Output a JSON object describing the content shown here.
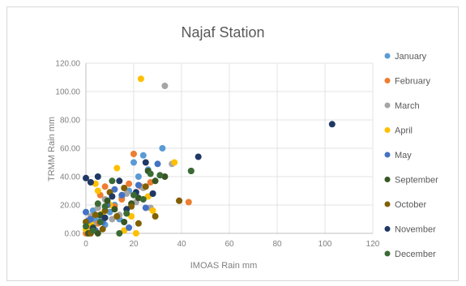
{
  "chart_data": {
    "type": "scatter",
    "title": "Najaf Station",
    "xlabel": "IMOAS Rain mm",
    "ylabel": "TRMM Rain mm",
    "xlim": [
      0,
      120
    ],
    "ylim": [
      0,
      120
    ],
    "x_ticks": [
      "0",
      "20",
      "40",
      "60",
      "80",
      "100",
      "120"
    ],
    "y_ticks": [
      "0.00",
      "20.00",
      "40.00",
      "60.00",
      "80.00",
      "100.00",
      "120.00"
    ],
    "grid": true,
    "legend_position": "right",
    "series": [
      {
        "name": "January",
        "color": "#5b9bd5",
        "points": [
          [
            1,
            2
          ],
          [
            2,
            5
          ],
          [
            4,
            9
          ],
          [
            6,
            12
          ],
          [
            8,
            6
          ],
          [
            10,
            15
          ],
          [
            12,
            20
          ],
          [
            15,
            25
          ],
          [
            18,
            30
          ],
          [
            20,
            50
          ],
          [
            22,
            40
          ],
          [
            24,
            55
          ],
          [
            26,
            45
          ],
          [
            32,
            60
          ],
          [
            3,
            16
          ],
          [
            14,
            10
          ]
        ]
      },
      {
        "name": "February",
        "color": "#ed7d31",
        "points": [
          [
            0,
            0
          ],
          [
            2,
            3
          ],
          [
            5,
            7
          ],
          [
            8,
            33
          ],
          [
            12,
            19
          ],
          [
            15,
            24
          ],
          [
            18,
            35
          ],
          [
            20,
            56
          ],
          [
            23,
            33
          ],
          [
            27,
            36
          ],
          [
            39,
            23
          ],
          [
            43,
            22
          ],
          [
            6,
            27
          ]
        ]
      },
      {
        "name": "March",
        "color": "#a5a5a5",
        "points": [
          [
            1,
            1
          ],
          [
            3,
            6
          ],
          [
            5,
            18
          ],
          [
            8,
            24
          ],
          [
            11,
            10
          ],
          [
            14,
            13
          ],
          [
            17,
            28
          ],
          [
            21,
            22
          ],
          [
            24,
            32
          ],
          [
            27,
            18
          ],
          [
            33,
            104
          ],
          [
            36,
            49
          ],
          [
            2,
            12
          ]
        ]
      },
      {
        "name": "April",
        "color": "#ffc000",
        "points": [
          [
            0,
            3
          ],
          [
            2,
            7
          ],
          [
            5,
            30
          ],
          [
            7,
            14
          ],
          [
            10,
            20
          ],
          [
            13,
            46
          ],
          [
            16,
            2
          ],
          [
            19,
            12
          ],
          [
            21,
            0
          ],
          [
            23,
            109
          ],
          [
            26,
            26
          ],
          [
            28,
            16
          ],
          [
            37,
            50
          ],
          [
            4,
            35
          ]
        ]
      },
      {
        "name": "May",
        "color": "#4472c4",
        "points": [
          [
            0,
            15
          ],
          [
            2,
            10
          ],
          [
            4,
            2
          ],
          [
            7,
            8
          ],
          [
            9,
            20
          ],
          [
            12,
            31
          ],
          [
            15,
            27
          ],
          [
            18,
            4
          ],
          [
            22,
            34
          ],
          [
            25,
            18
          ],
          [
            28,
            28
          ],
          [
            30,
            49
          ],
          [
            1,
            9
          ]
        ]
      },
      {
        "name": "September",
        "color": "#375623",
        "points": [
          [
            1,
            0
          ],
          [
            3,
            4
          ],
          [
            6,
            13
          ],
          [
            9,
            23
          ],
          [
            12,
            17
          ],
          [
            16,
            8
          ],
          [
            19,
            21
          ],
          [
            22,
            25
          ],
          [
            26,
            44
          ],
          [
            29,
            37
          ],
          [
            33,
            40
          ],
          [
            44,
            44
          ],
          [
            5,
            0
          ]
        ]
      },
      {
        "name": "October",
        "color": "#806000",
        "points": [
          [
            0,
            8
          ],
          [
            2,
            0
          ],
          [
            4,
            13
          ],
          [
            7,
            3
          ],
          [
            10,
            29
          ],
          [
            13,
            12
          ],
          [
            16,
            32
          ],
          [
            19,
            19
          ],
          [
            22,
            7
          ],
          [
            25,
            33
          ],
          [
            29,
            12
          ],
          [
            39,
            23
          ],
          [
            8,
            16
          ]
        ]
      },
      {
        "name": "November",
        "color": "#203864",
        "points": [
          [
            0,
            39
          ],
          [
            2,
            36
          ],
          [
            5,
            40
          ],
          [
            8,
            11
          ],
          [
            11,
            26
          ],
          [
            14,
            37
          ],
          [
            17,
            17
          ],
          [
            21,
            29
          ],
          [
            25,
            50
          ],
          [
            28,
            28
          ],
          [
            47,
            54
          ],
          [
            103,
            77
          ],
          [
            3,
            3
          ]
        ]
      },
      {
        "name": "December",
        "color": "#3b6b35",
        "points": [
          [
            0,
            5
          ],
          [
            3,
            2
          ],
          [
            5,
            21
          ],
          [
            8,
            19
          ],
          [
            11,
            37
          ],
          [
            14,
            0
          ],
          [
            17,
            14
          ],
          [
            20,
            27
          ],
          [
            24,
            24
          ],
          [
            27,
            42
          ],
          [
            31,
            41
          ],
          [
            44,
            44
          ],
          [
            6,
            8
          ]
        ]
      }
    ]
  }
}
